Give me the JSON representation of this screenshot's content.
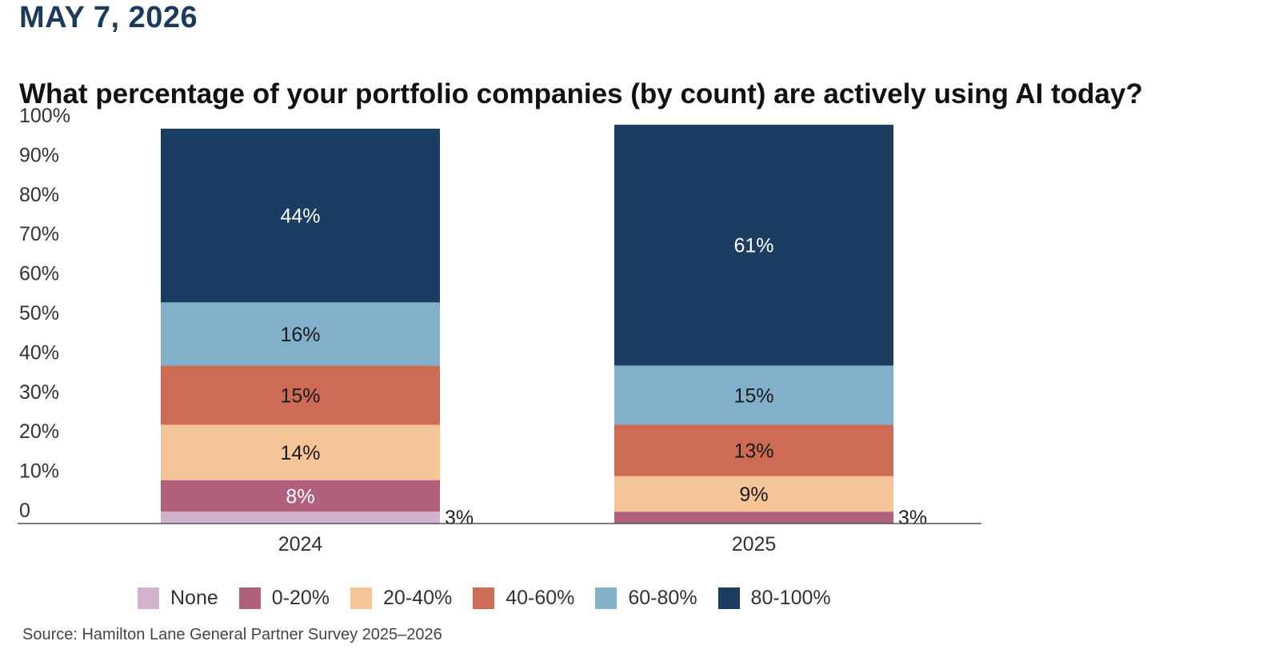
{
  "header": {
    "date": "MAY 7, 2026"
  },
  "chart_data": {
    "type": "bar",
    "stacked": true,
    "title": "What percentage of your portfolio companies (by count) are actively using AI today?",
    "categories": [
      "2024",
      "2025"
    ],
    "ylim": [
      0,
      100
    ],
    "yticks": [
      "0",
      "10%",
      "20%",
      "30%",
      "40%",
      "50%",
      "60%",
      "70%",
      "80%",
      "90%",
      "100%"
    ],
    "grid": false,
    "legend_position": "bottom",
    "series": [
      {
        "name": "None",
        "color": "#d1b4cc",
        "values": [
          3,
          0
        ],
        "labels": [
          "3%",
          ""
        ]
      },
      {
        "name": "0-20%",
        "color": "#b0607c",
        "values": [
          8,
          3
        ],
        "labels": [
          "8%",
          "3%"
        ]
      },
      {
        "name": "20-40%",
        "color": "#f5c497",
        "values": [
          14,
          9
        ],
        "labels": [
          "14%",
          "9%"
        ]
      },
      {
        "name": "40-60%",
        "color": "#cd6b55",
        "values": [
          15,
          13
        ],
        "labels": [
          "15%",
          "13%"
        ]
      },
      {
        "name": "60-80%",
        "color": "#82b0cb",
        "values": [
          16,
          15
        ],
        "labels": [
          "16%",
          "15%"
        ]
      },
      {
        "name": "80-100%",
        "color": "#1c3d62",
        "values": [
          44,
          61
        ],
        "labels": [
          "44%",
          "61%"
        ]
      }
    ]
  },
  "source": "Source: Hamilton Lane General Partner Survey 2025–2026"
}
